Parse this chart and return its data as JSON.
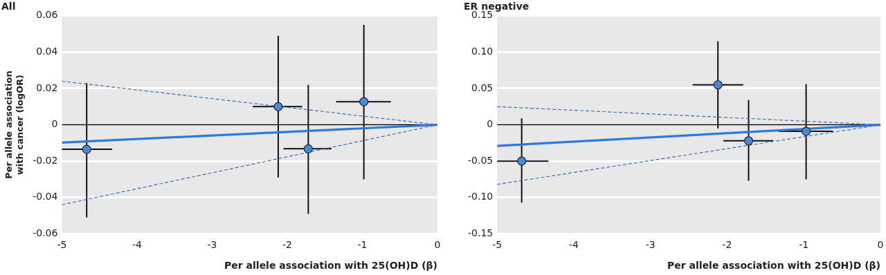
{
  "chart_data": [
    {
      "type": "scatter",
      "title": "All",
      "xlabel": "Per allele association with 25(OH)D (β)",
      "ylabel": "Per allele association with cancer (logOR)",
      "xlim": [
        -5,
        0
      ],
      "xticks": [
        -5,
        -4,
        -3,
        -2,
        -1,
        0
      ],
      "ylim": [
        -0.06,
        0.06
      ],
      "yticks": [
        -0.06,
        -0.04,
        -0.02,
        0,
        0.02,
        0.04,
        0.06
      ],
      "grid": "y",
      "legend": false,
      "ref_lines": [
        {
          "axis": "y",
          "value": 0,
          "color": "#000000",
          "line_style": "solid"
        }
      ],
      "series": [
        {
          "type": "line",
          "color": "#2f7ad8",
          "line_style": "solid",
          "marker": "none",
          "x": [
            -5,
            0
          ],
          "values": [
            -0.0098,
            0
          ]
        },
        {
          "type": "line",
          "color": "#3a72b8",
          "line_style": "dashed",
          "marker": "none",
          "x": [
            -5,
            0
          ],
          "values": [
            0.024,
            0
          ]
        },
        {
          "type": "line",
          "color": "#3a72b8",
          "line_style": "dashed",
          "marker": "none",
          "x": [
            -5,
            0
          ],
          "values": [
            -0.044,
            0
          ]
        },
        {
          "type": "scatter",
          "color": "#4a88d4",
          "marker": "circle",
          "x": [
            -4.67,
            -2.12,
            -1.72,
            -0.98
          ],
          "values": [
            -0.0135,
            0.01,
            -0.0132,
            0.0127
          ],
          "errors": [
            [
              -0.051,
              0.023
            ],
            [
              -0.029,
              0.049
            ],
            [
              -0.049,
              0.022
            ],
            [
              -0.03,
              0.055
            ]
          ],
          "xerrors": [
            [
              -5.0,
              -4.33
            ],
            [
              -2.46,
              -1.8
            ],
            [
              -2.05,
              -1.41
            ],
            [
              -1.35,
              -0.62
            ]
          ]
        }
      ]
    },
    {
      "type": "scatter",
      "title": "ER negative",
      "xlabel": "Per allele association with 25(OH)D (β)",
      "xlim": [
        -5,
        0
      ],
      "xticks": [
        -5,
        -4,
        -3,
        -2,
        -1,
        0
      ],
      "ylim": [
        -0.15,
        0.15
      ],
      "yticks": [
        -0.15,
        {
          "value": -0.1,
          "label": "-0.10"
        },
        -0.05,
        0,
        0.05,
        {
          "value": 0.1,
          "label": "0.10"
        },
        0.15
      ],
      "grid": "y",
      "legend": false,
      "ref_lines": [
        {
          "axis": "y",
          "value": 0,
          "color": "#000000",
          "line_style": "solid"
        }
      ],
      "series": [
        {
          "type": "line",
          "color": "#2f7ad8",
          "line_style": "solid",
          "marker": "none",
          "x": [
            -5,
            0
          ],
          "values": [
            -0.029,
            0
          ]
        },
        {
          "type": "line",
          "color": "#3a72b8",
          "line_style": "dashed",
          "marker": "none",
          "x": [
            -5,
            0
          ],
          "values": [
            0.025,
            0
          ]
        },
        {
          "type": "line",
          "color": "#3a72b8",
          "line_style": "dashed",
          "marker": "none",
          "x": [
            -5,
            0
          ],
          "values": [
            -0.082,
            0
          ]
        },
        {
          "type": "scatter",
          "color": "#4a88d4",
          "marker": "circle",
          "x": [
            -4.68,
            -2.12,
            -1.72,
            -0.97
          ],
          "values": [
            -0.05,
            0.055,
            -0.022,
            -0.009
          ],
          "errors": [
            [
              -0.107,
              0.009
            ],
            [
              -0.005,
              0.115
            ],
            [
              -0.077,
              0.034
            ],
            [
              -0.075,
              0.056
            ]
          ],
          "xerrors": [
            [
              -5.0,
              -4.33
            ],
            [
              -2.45,
              -1.79
            ],
            [
              -2.05,
              -1.4
            ],
            [
              -1.33,
              -0.62
            ]
          ]
        }
      ]
    }
  ]
}
